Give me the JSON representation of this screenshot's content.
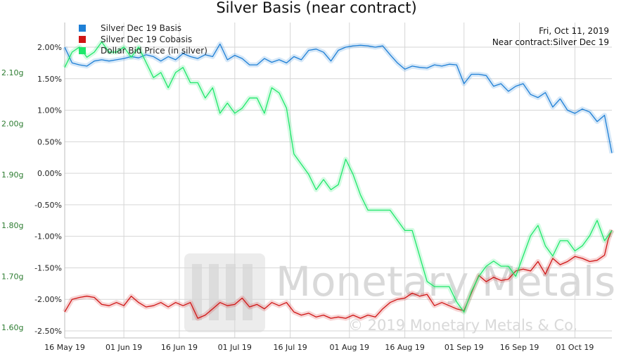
{
  "chart_data": {
    "type": "line",
    "title": "Silver Basis (near contract)",
    "info": {
      "date": "Fri, Oct 11, 2019",
      "contract": "Near contract:Silver Dec 19"
    },
    "watermark": {
      "brand": "Monetary Metals",
      "copyright": "© 2019 Monetary Metals & Co."
    },
    "x_ticks": [
      "16 May 19",
      "01 Jun 19",
      "16 Jun 19",
      "01 Jul 19",
      "16 Jul 19",
      "01 Aug 19",
      "16 Aug 19",
      "01 Sep 19",
      "16 Sep 19",
      "01 Oct 19"
    ],
    "x_tick_days": [
      0,
      16,
      31,
      46,
      61,
      77,
      92,
      108,
      123,
      138
    ],
    "x_range_days": [
      0,
      148
    ],
    "y_right": {
      "ticks": [
        "2.00%",
        "1.50%",
        "1.00%",
        "0.50%",
        "0.00%",
        "-0.50%",
        "-1.00%",
        "-1.50%",
        "-2.00%",
        "-2.50%"
      ],
      "tick_values": [
        2.0,
        1.5,
        1.0,
        0.5,
        0.0,
        -0.5,
        -1.0,
        -1.5,
        -2.0,
        -2.5
      ],
      "range": [
        -2.5,
        2.0
      ]
    },
    "y_left": {
      "ticks": [
        "2.10g",
        "2.00g",
        "1.90g",
        "1.80g",
        "1.70g",
        "1.60g"
      ],
      "tick_values": [
        2.1,
        2.0,
        1.9,
        1.8,
        1.7,
        1.6
      ],
      "range": [
        1.59,
        2.19
      ]
    },
    "colors": {
      "basis": "#1e7fd6",
      "cobasis": "#d01515",
      "dollar": "#1ee86a",
      "grid": "#d6d6d6"
    },
    "series": [
      {
        "name": "Silver Dec 19 Basis",
        "axis": "right",
        "color": "#1e7fd6",
        "points": [
          [
            0,
            2.0
          ],
          [
            2,
            1.75
          ],
          [
            4,
            1.72
          ],
          [
            6,
            1.7
          ],
          [
            8,
            1.78
          ],
          [
            10,
            1.8
          ],
          [
            12,
            1.78
          ],
          [
            14,
            1.8
          ],
          [
            16,
            1.82
          ],
          [
            18,
            1.85
          ],
          [
            20,
            1.83
          ],
          [
            22,
            1.88
          ],
          [
            24,
            1.85
          ],
          [
            26,
            1.78
          ],
          [
            28,
            1.85
          ],
          [
            30,
            1.8
          ],
          [
            32,
            1.9
          ],
          [
            34,
            1.85
          ],
          [
            36,
            1.82
          ],
          [
            38,
            1.88
          ],
          [
            40,
            1.85
          ],
          [
            42,
            2.05
          ],
          [
            44,
            1.8
          ],
          [
            46,
            1.87
          ],
          [
            48,
            1.82
          ],
          [
            50,
            1.72
          ],
          [
            52,
            1.72
          ],
          [
            54,
            1.82
          ],
          [
            56,
            1.76
          ],
          [
            58,
            1.8
          ],
          [
            60,
            1.75
          ],
          [
            62,
            1.85
          ],
          [
            64,
            1.8
          ],
          [
            66,
            1.95
          ],
          [
            68,
            1.97
          ],
          [
            70,
            1.92
          ],
          [
            72,
            1.78
          ],
          [
            74,
            1.95
          ],
          [
            76,
            2.0
          ],
          [
            78,
            2.02
          ],
          [
            80,
            2.03
          ],
          [
            82,
            2.02
          ],
          [
            84,
            2.0
          ],
          [
            86,
            2.02
          ],
          [
            88,
            1.88
          ],
          [
            90,
            1.75
          ],
          [
            92,
            1.65
          ],
          [
            94,
            1.7
          ],
          [
            96,
            1.68
          ],
          [
            98,
            1.67
          ],
          [
            100,
            1.72
          ],
          [
            102,
            1.7
          ],
          [
            104,
            1.73
          ],
          [
            106,
            1.72
          ],
          [
            108,
            1.42
          ],
          [
            110,
            1.57
          ],
          [
            112,
            1.57
          ],
          [
            114,
            1.55
          ],
          [
            116,
            1.38
          ],
          [
            118,
            1.42
          ],
          [
            120,
            1.3
          ],
          [
            122,
            1.38
          ],
          [
            124,
            1.42
          ],
          [
            126,
            1.25
          ],
          [
            128,
            1.2
          ],
          [
            130,
            1.28
          ],
          [
            132,
            1.05
          ],
          [
            134,
            1.18
          ],
          [
            136,
            1.0
          ],
          [
            138,
            0.95
          ],
          [
            140,
            1.02
          ],
          [
            142,
            0.97
          ],
          [
            144,
            0.82
          ],
          [
            146,
            0.92
          ],
          [
            148,
            0.32
          ]
        ]
      },
      {
        "name": "Silver Dec 19 Cobasis",
        "axis": "right",
        "color": "#d01515",
        "points": [
          [
            0,
            -2.2
          ],
          [
            2,
            -2.0
          ],
          [
            4,
            -1.97
          ],
          [
            6,
            -1.95
          ],
          [
            8,
            -1.97
          ],
          [
            10,
            -2.08
          ],
          [
            12,
            -2.1
          ],
          [
            14,
            -2.05
          ],
          [
            16,
            -2.1
          ],
          [
            18,
            -1.95
          ],
          [
            20,
            -2.05
          ],
          [
            22,
            -2.12
          ],
          [
            24,
            -2.1
          ],
          [
            26,
            -2.05
          ],
          [
            28,
            -2.12
          ],
          [
            30,
            -2.05
          ],
          [
            32,
            -2.1
          ],
          [
            34,
            -2.05
          ],
          [
            36,
            -2.3
          ],
          [
            38,
            -2.25
          ],
          [
            40,
            -2.15
          ],
          [
            42,
            -2.05
          ],
          [
            44,
            -2.1
          ],
          [
            46,
            -2.08
          ],
          [
            48,
            -1.98
          ],
          [
            50,
            -2.12
          ],
          [
            52,
            -2.08
          ],
          [
            54,
            -2.15
          ],
          [
            56,
            -2.05
          ],
          [
            58,
            -2.1
          ],
          [
            60,
            -2.05
          ],
          [
            62,
            -2.2
          ],
          [
            64,
            -2.25
          ],
          [
            66,
            -2.22
          ],
          [
            68,
            -2.28
          ],
          [
            70,
            -2.25
          ],
          [
            72,
            -2.3
          ],
          [
            74,
            -2.28
          ],
          [
            76,
            -2.3
          ],
          [
            78,
            -2.25
          ],
          [
            80,
            -2.3
          ],
          [
            82,
            -2.25
          ],
          [
            84,
            -2.28
          ],
          [
            86,
            -2.15
          ],
          [
            88,
            -2.05
          ],
          [
            90,
            -2.0
          ],
          [
            92,
            -1.98
          ],
          [
            94,
            -1.9
          ],
          [
            96,
            -1.95
          ],
          [
            98,
            -1.92
          ],
          [
            100,
            -2.1
          ],
          [
            102,
            -2.05
          ],
          [
            104,
            -2.1
          ],
          [
            106,
            -2.15
          ],
          [
            108,
            -2.18
          ],
          [
            110,
            -1.9
          ],
          [
            112,
            -1.62
          ],
          [
            114,
            -1.72
          ],
          [
            116,
            -1.65
          ],
          [
            118,
            -1.7
          ],
          [
            120,
            -1.68
          ],
          [
            122,
            -1.55
          ],
          [
            124,
            -1.52
          ],
          [
            126,
            -1.55
          ],
          [
            128,
            -1.4
          ],
          [
            130,
            -1.6
          ],
          [
            132,
            -1.35
          ],
          [
            134,
            -1.45
          ],
          [
            136,
            -1.4
          ],
          [
            138,
            -1.32
          ],
          [
            140,
            -1.35
          ],
          [
            142,
            -1.4
          ],
          [
            144,
            -1.38
          ],
          [
            146,
            -1.3
          ],
          [
            147,
            -1.05
          ],
          [
            148,
            -0.9
          ]
        ]
      },
      {
        "name": "Dollar Bid Price (in silver)",
        "axis": "left",
        "color": "#1ee86a",
        "points": [
          [
            0,
            2.11
          ],
          [
            2,
            2.14
          ],
          [
            4,
            2.15
          ],
          [
            6,
            2.13
          ],
          [
            8,
            2.14
          ],
          [
            10,
            2.16
          ],
          [
            12,
            2.14
          ],
          [
            14,
            2.14
          ],
          [
            16,
            2.15
          ],
          [
            18,
            2.13
          ],
          [
            20,
            2.15
          ],
          [
            22,
            2.12
          ],
          [
            24,
            2.09
          ],
          [
            26,
            2.1
          ],
          [
            28,
            2.07
          ],
          [
            30,
            2.1
          ],
          [
            32,
            2.11
          ],
          [
            34,
            2.08
          ],
          [
            36,
            2.08
          ],
          [
            38,
            2.05
          ],
          [
            40,
            2.07
          ],
          [
            42,
            2.02
          ],
          [
            44,
            2.04
          ],
          [
            46,
            2.02
          ],
          [
            48,
            2.03
          ],
          [
            50,
            2.05
          ],
          [
            52,
            2.05
          ],
          [
            54,
            2.02
          ],
          [
            56,
            2.07
          ],
          [
            58,
            2.06
          ],
          [
            60,
            2.03
          ],
          [
            62,
            1.94
          ],
          [
            64,
            1.92
          ],
          [
            66,
            1.9
          ],
          [
            68,
            1.87
          ],
          [
            70,
            1.89
          ],
          [
            72,
            1.87
          ],
          [
            74,
            1.88
          ],
          [
            76,
            1.93
          ],
          [
            78,
            1.9
          ],
          [
            80,
            1.86
          ],
          [
            82,
            1.83
          ],
          [
            84,
            1.83
          ],
          [
            86,
            1.83
          ],
          [
            88,
            1.83
          ],
          [
            90,
            1.81
          ],
          [
            92,
            1.79
          ],
          [
            94,
            1.79
          ],
          [
            96,
            1.74
          ],
          [
            98,
            1.69
          ],
          [
            100,
            1.68
          ],
          [
            102,
            1.68
          ],
          [
            104,
            1.68
          ],
          [
            106,
            1.65
          ],
          [
            108,
            1.63
          ],
          [
            110,
            1.67
          ],
          [
            112,
            1.7
          ],
          [
            114,
            1.72
          ],
          [
            116,
            1.73
          ],
          [
            118,
            1.72
          ],
          [
            120,
            1.72
          ],
          [
            122,
            1.7
          ],
          [
            124,
            1.74
          ],
          [
            126,
            1.78
          ],
          [
            128,
            1.8
          ],
          [
            130,
            1.76
          ],
          [
            132,
            1.74
          ],
          [
            134,
            1.77
          ],
          [
            136,
            1.77
          ],
          [
            138,
            1.75
          ],
          [
            140,
            1.76
          ],
          [
            142,
            1.78
          ],
          [
            144,
            1.81
          ],
          [
            146,
            1.77
          ],
          [
            148,
            1.79
          ]
        ]
      }
    ],
    "legend": {
      "position": "top-left"
    },
    "grid": true
  }
}
